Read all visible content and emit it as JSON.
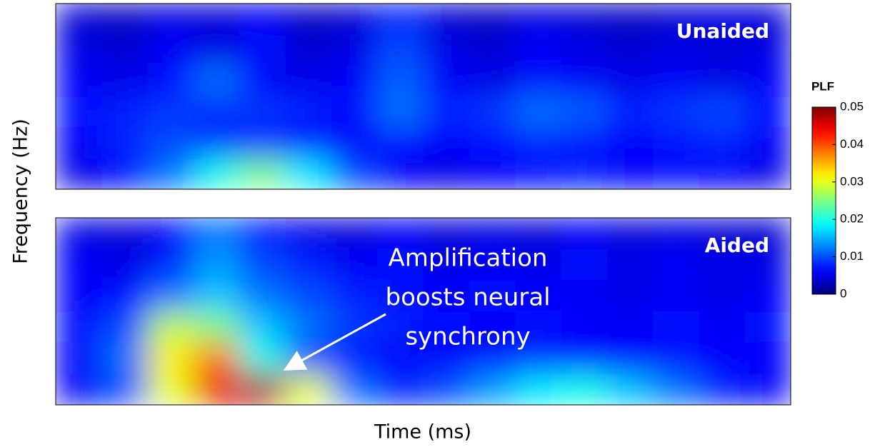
{
  "chart_data": {
    "type": "heatmap",
    "colormap": "jet",
    "xlabel": "Time (ms)",
    "ylabel": "Frequency (Hz)",
    "colorbar": {
      "title": "PLF",
      "lim": [
        0,
        0.05
      ],
      "ticks": [
        0,
        0.01,
        0.02,
        0.03,
        0.04,
        0.05
      ]
    },
    "panels": [
      {
        "title": "Unaided",
        "values": [
          [
            0.004,
            0.003,
            0.005,
            0.004,
            0.006,
            0.003,
            0.004,
            0.008,
            0.004,
            0.003,
            0.005,
            0.004,
            0.003,
            0.004,
            0.005,
            0.004
          ],
          [
            0.005,
            0.004,
            0.006,
            0.005,
            0.007,
            0.004,
            0.005,
            0.01,
            0.005,
            0.004,
            0.006,
            0.005,
            0.004,
            0.005,
            0.004,
            0.005
          ],
          [
            0.006,
            0.005,
            0.007,
            0.012,
            0.006,
            0.005,
            0.006,
            0.011,
            0.006,
            0.005,
            0.007,
            0.006,
            0.005,
            0.006,
            0.005,
            0.006
          ],
          [
            0.007,
            0.008,
            0.009,
            0.008,
            0.009,
            0.008,
            0.007,
            0.012,
            0.008,
            0.009,
            0.012,
            0.011,
            0.008,
            0.009,
            0.01,
            0.007
          ],
          [
            0.006,
            0.008,
            0.01,
            0.009,
            0.008,
            0.007,
            0.006,
            0.007,
            0.006,
            0.007,
            0.008,
            0.007,
            0.006,
            0.007,
            0.008,
            0.006
          ],
          [
            0.005,
            0.007,
            0.012,
            0.02,
            0.025,
            0.018,
            0.01,
            0.006,
            0.005,
            0.006,
            0.007,
            0.008,
            0.006,
            0.007,
            0.006,
            0.005
          ]
        ]
      },
      {
        "title": "Aided",
        "annotation": [
          "Amplification",
          "boosts neural",
          "synchrony"
        ],
        "values": [
          [
            0.005,
            0.004,
            0.006,
            0.012,
            0.007,
            0.005,
            0.004,
            0.006,
            0.004,
            0.005,
            0.004,
            0.006,
            0.004,
            0.005,
            0.004,
            0.004
          ],
          [
            0.006,
            0.005,
            0.008,
            0.014,
            0.01,
            0.008,
            0.006,
            0.007,
            0.005,
            0.006,
            0.005,
            0.007,
            0.005,
            0.006,
            0.005,
            0.005
          ],
          [
            0.006,
            0.007,
            0.012,
            0.016,
            0.012,
            0.01,
            0.008,
            0.007,
            0.006,
            0.007,
            0.006,
            0.006,
            0.005,
            0.006,
            0.005,
            0.006
          ],
          [
            0.007,
            0.01,
            0.028,
            0.025,
            0.016,
            0.012,
            0.009,
            0.008,
            0.007,
            0.006,
            0.007,
            0.006,
            0.006,
            0.007,
            0.006,
            0.007
          ],
          [
            0.006,
            0.012,
            0.032,
            0.038,
            0.02,
            0.01,
            0.007,
            0.006,
            0.006,
            0.007,
            0.008,
            0.007,
            0.006,
            0.007,
            0.006,
            0.006
          ],
          [
            0.006,
            0.01,
            0.03,
            0.045,
            0.048,
            0.03,
            0.012,
            0.008,
            0.01,
            0.014,
            0.018,
            0.02,
            0.016,
            0.012,
            0.008,
            0.006
          ]
        ]
      }
    ]
  }
}
